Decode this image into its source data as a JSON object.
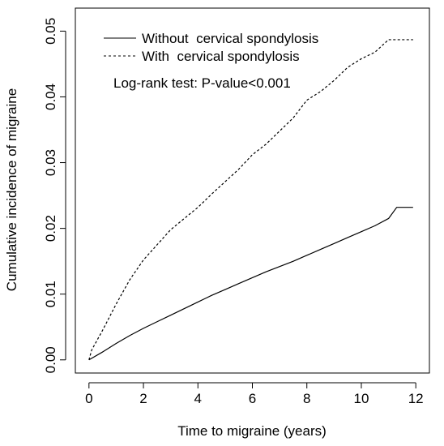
{
  "chart_data": {
    "type": "line",
    "title": "",
    "xlabel": "Time to migraine (years)",
    "ylabel": "Cumulative incidence of migraine",
    "xlim": [
      -0.5,
      12.5
    ],
    "ylim": [
      -0.002,
      0.0535
    ],
    "x_ticks": [
      0,
      2,
      4,
      6,
      8,
      10,
      12
    ],
    "x_tick_labels": [
      "0",
      "2",
      "4",
      "6",
      "8",
      "10",
      "12"
    ],
    "y_ticks": [
      0.0,
      0.01,
      0.02,
      0.03,
      0.04,
      0.05
    ],
    "y_tick_labels": [
      "0.00",
      "0.01",
      "0.02",
      "0.03",
      "0.04",
      "0.05"
    ],
    "grid": false,
    "legend_position": "top-left",
    "annotation": "Log-rank test: P-value<0.001",
    "series": [
      {
        "name": "Without  cervical spondylosis",
        "line_style": "solid",
        "color": "#000000",
        "x": [
          0,
          0.5,
          1,
          1.5,
          2,
          2.5,
          3,
          3.5,
          4,
          4.5,
          5,
          5.5,
          6,
          6.5,
          7,
          7.5,
          8,
          8.5,
          9,
          9.5,
          10,
          10.5,
          11,
          11.3,
          11.9
        ],
        "y": [
          0.0,
          0.0012,
          0.0025,
          0.0037,
          0.0048,
          0.0058,
          0.0068,
          0.0078,
          0.0088,
          0.0098,
          0.0107,
          0.0116,
          0.0125,
          0.0134,
          0.0142,
          0.015,
          0.0159,
          0.0168,
          0.0177,
          0.0186,
          0.0195,
          0.0204,
          0.0215,
          0.0232,
          0.0232
        ]
      },
      {
        "name": "With  cervical spondylosis",
        "line_style": "dashed",
        "color": "#000000",
        "x": [
          0,
          0.1,
          0.3,
          0.5,
          1,
          1.5,
          2,
          2.5,
          3,
          3.5,
          4,
          4.5,
          5,
          5.5,
          6,
          6.5,
          7,
          7.5,
          8,
          8.5,
          9,
          9.5,
          10,
          10.5,
          11,
          11.9
        ],
        "y": [
          0.0,
          0.0015,
          0.003,
          0.0045,
          0.0085,
          0.0122,
          0.0152,
          0.0175,
          0.0198,
          0.0215,
          0.0232,
          0.0252,
          0.0271,
          0.029,
          0.0312,
          0.0328,
          0.0348,
          0.0368,
          0.0395,
          0.0408,
          0.0425,
          0.0445,
          0.0458,
          0.0468,
          0.0487,
          0.0487
        ]
      }
    ]
  }
}
